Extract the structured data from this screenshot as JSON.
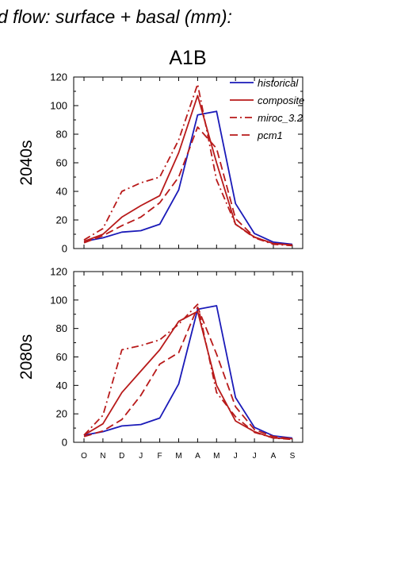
{
  "title": "d flow: surface + basal (mm):",
  "scenario": "A1B",
  "colors": {
    "historical": "#1a1ab8",
    "model": "#b81a1a"
  },
  "legend_items": [
    "historical",
    "composite",
    "miroc_3.2",
    "pcm1"
  ],
  "chart_data": [
    {
      "type": "line",
      "ylabel": "2040s",
      "ylim": [
        0,
        120
      ],
      "yticks": [
        0,
        20,
        40,
        60,
        80,
        100,
        120
      ],
      "categories": [
        "O",
        "N",
        "D",
        "J",
        "F",
        "M",
        "A",
        "M",
        "J",
        "J",
        "A",
        "S"
      ],
      "legend": "top-right",
      "series": [
        {
          "name": "historical",
          "style": "solid",
          "color": "#1a1ab8",
          "values": [
            5,
            7.5,
            11.5,
            12.5,
            17,
            41,
            93.5,
            96,
            31.5,
            10.5,
            4.5,
            3
          ]
        },
        {
          "name": "composite",
          "style": "solid",
          "color": "#b81a1a",
          "values": [
            5,
            10,
            22,
            30,
            37,
            67,
            107,
            60,
            17,
            8,
            3.5,
            2.5
          ]
        },
        {
          "name": "miroc_3.2",
          "style": "dashdot",
          "color": "#b81a1a",
          "values": [
            6,
            14,
            40,
            46,
            50,
            76,
            115,
            48,
            17,
            7.5,
            3,
            2
          ]
        },
        {
          "name": "pcm1",
          "style": "dash",
          "color": "#b81a1a",
          "values": [
            4,
            9,
            16,
            22,
            32,
            50,
            85,
            70,
            21,
            8,
            3.5,
            2.5
          ]
        }
      ]
    },
    {
      "type": "line",
      "ylabel": "2080s",
      "ylim": [
        0,
        120
      ],
      "yticks": [
        0,
        20,
        40,
        60,
        80,
        100,
        120
      ],
      "categories": [
        "O",
        "N",
        "D",
        "J",
        "F",
        "M",
        "A",
        "M",
        "J",
        "J",
        "A",
        "S"
      ],
      "series": [
        {
          "name": "historical",
          "style": "solid",
          "color": "#1a1ab8",
          "values": [
            5,
            7.5,
            11.5,
            12.5,
            17,
            41,
            93.5,
            96,
            31.5,
            10.5,
            4.5,
            3
          ]
        },
        {
          "name": "composite",
          "style": "solid",
          "color": "#b81a1a",
          "values": [
            5,
            13,
            35,
            50,
            65,
            85,
            92,
            40,
            15,
            7.5,
            3,
            2.5
          ]
        },
        {
          "name": "miroc_3.2",
          "style": "dashdot",
          "color": "#b81a1a",
          "values": [
            5,
            19,
            65,
            68,
            72,
            83,
            97,
            35,
            18,
            7,
            3,
            2
          ]
        },
        {
          "name": "pcm1",
          "style": "dash",
          "color": "#b81a1a",
          "values": [
            4,
            8,
            16,
            33,
            55,
            63,
            95,
            62,
            25,
            9,
            4,
            2.5
          ]
        }
      ]
    }
  ]
}
